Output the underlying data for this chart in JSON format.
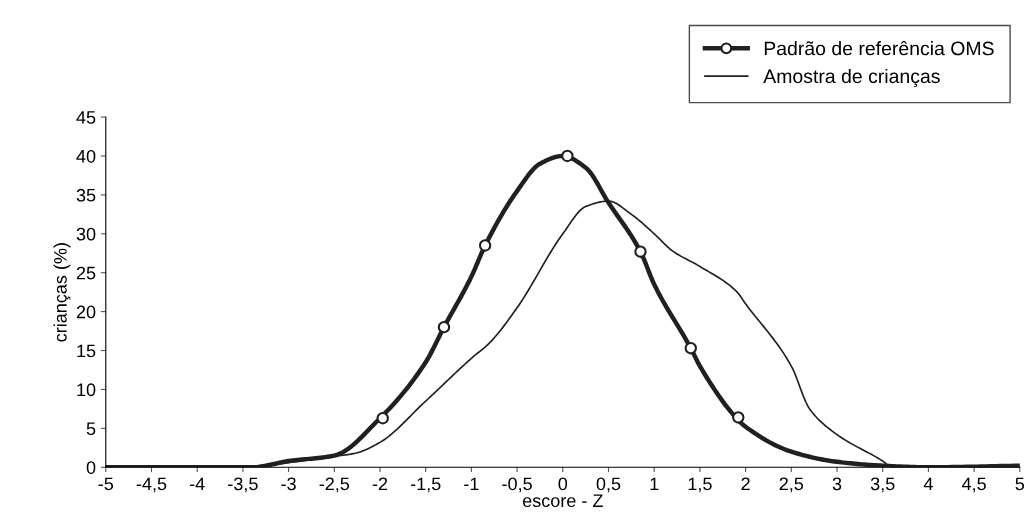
{
  "chart_data": {
    "type": "line",
    "xlabel": "escore - Z",
    "ylabel": "crianças (%)",
    "xlim": [
      -5,
      5
    ],
    "ylim": [
      0,
      45
    ],
    "xticks": [
      -5,
      {
        "value": -4.5,
        "label": "-4,5"
      },
      -4,
      {
        "value": -3.5,
        "label": "-3,5"
      },
      -3,
      {
        "value": -2.5,
        "label": "-2,5"
      },
      -2,
      {
        "value": -1.5,
        "label": "-1,5"
      },
      -1,
      {
        "value": -0.5,
        "label": "-0,5"
      },
      0,
      {
        "value": 0.5,
        "label": "0,5"
      },
      1,
      {
        "value": 1.5,
        "label": "1,5"
      },
      2,
      {
        "value": 2.5,
        "label": "2,5"
      },
      3,
      {
        "value": 3.5,
        "label": "3,5"
      },
      4,
      {
        "value": 4.5,
        "label": "4,5"
      },
      5
    ],
    "yticks": [
      0,
      5,
      10,
      15,
      20,
      25,
      30,
      35,
      40,
      45
    ],
    "grid": false,
    "legend": "top right",
    "series": [
      {
        "name": "Padrão de referência OMS",
        "color": "#231f20",
        "x": [
          -5,
          -4,
          -3.4,
          -3,
          -2.5,
          -2,
          -1.5,
          -1.3,
          -1,
          -0.85,
          -0.5,
          -0.25,
          0,
          0.25,
          0.5,
          0.85,
          1,
          1.4,
          1.5,
          1.9,
          2,
          2.5,
          3,
          3.5,
          4,
          5
        ],
        "values": [
          0,
          0,
          0,
          0.8,
          1.5,
          6.3,
          13.5,
          18,
          24.5,
          28.5,
          35.5,
          39,
          40,
          38.5,
          34,
          27.7,
          23.5,
          15.3,
          13,
          6.3,
          5.2,
          2,
          0.7,
          0.2,
          0,
          0.2
        ]
      },
      {
        "type": "scatter",
        "color": "#231f20",
        "marker": "circle",
        "x": [
          -1.97,
          -1.3,
          -0.85,
          0.05,
          0.85,
          1.4,
          1.92
        ],
        "values": [
          6.3,
          18,
          28.5,
          40,
          27.7,
          15.3,
          6.4
        ]
      },
      {
        "name": "Amostra de crianças",
        "color": "#231f20",
        "x": [
          -5,
          -4,
          -3.4,
          -3,
          -2.5,
          -2.27,
          -2,
          -1.5,
          -1,
          -0.8,
          -0.5,
          0,
          0.25,
          0.5,
          0.75,
          1,
          1.2,
          1.5,
          1.9,
          2,
          2.5,
          2.7,
          3,
          3.5,
          3.6,
          4,
          5
        ],
        "values": [
          0,
          0,
          0,
          0.6,
          1.4,
          1.8,
          3.2,
          8.5,
          14,
          16,
          20.5,
          30,
          33.5,
          34.2,
          32.5,
          30,
          27.8,
          25.8,
          22.6,
          21,
          13,
          7.5,
          4.2,
          0.8,
          0,
          0,
          0
        ]
      }
    ]
  }
}
